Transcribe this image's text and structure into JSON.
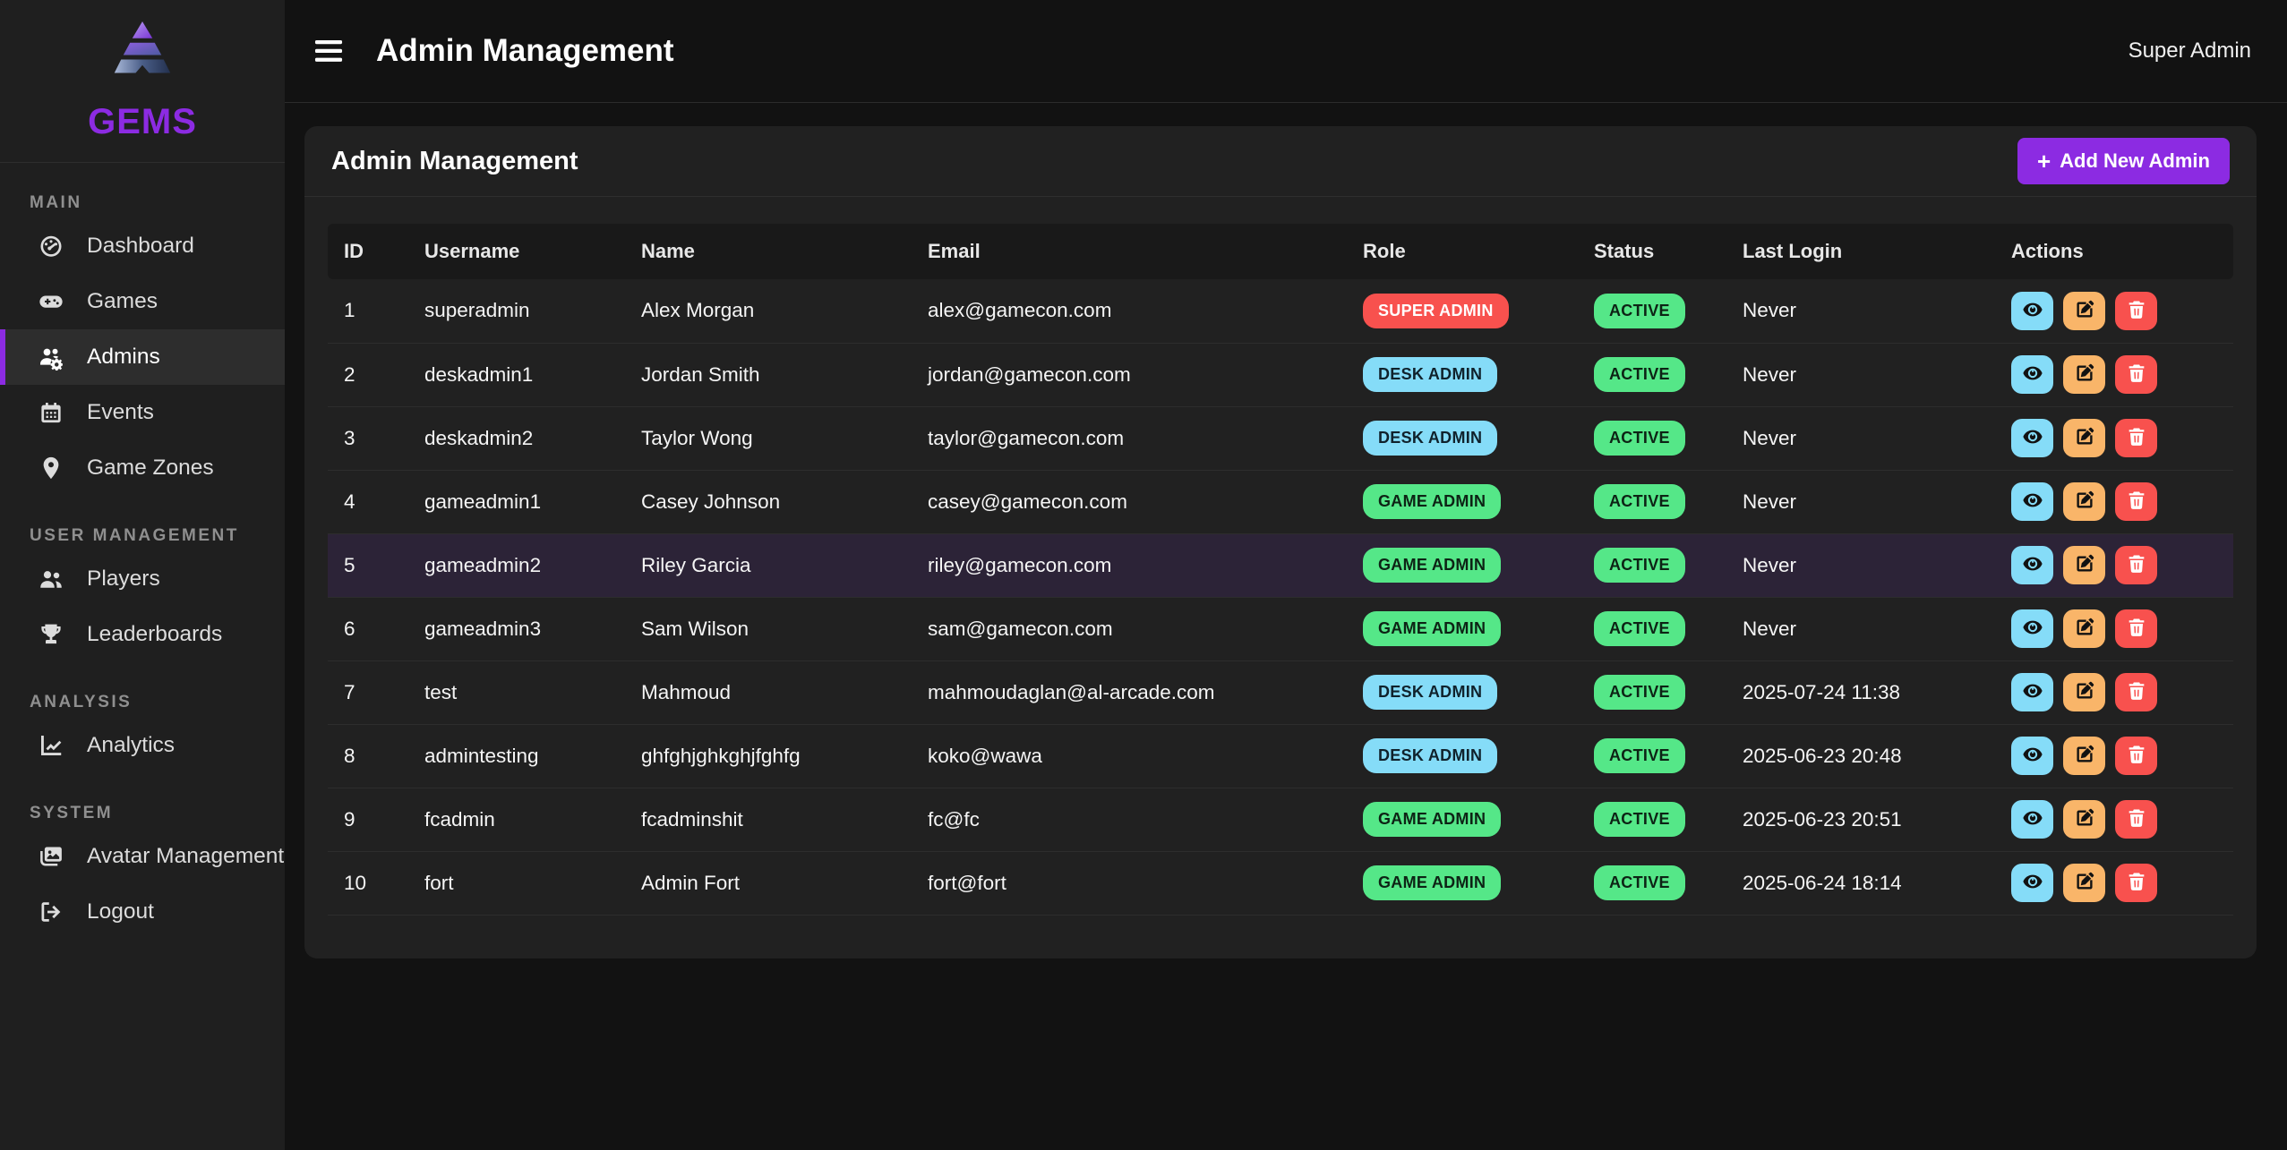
{
  "colors": {
    "accent_purple": "#8c2be2",
    "badge_red": "#f8514e",
    "badge_blue": "#85dcf8",
    "badge_green": "#55e788",
    "edit_orange": "#f9b569",
    "row_highlight": "#2c2337"
  },
  "sidebar": {
    "logo_text": "GEMS",
    "sections": [
      {
        "label": "MAIN",
        "items": [
          {
            "label": "Dashboard",
            "icon": "dashboard-icon",
            "active": false
          },
          {
            "label": "Games",
            "icon": "gamepad-icon",
            "active": false
          },
          {
            "label": "Admins",
            "icon": "admins-gear-icon",
            "active": true
          },
          {
            "label": "Events",
            "icon": "calendar-icon",
            "active": false
          },
          {
            "label": "Game Zones",
            "icon": "location-pin-icon",
            "active": false
          }
        ]
      },
      {
        "label": "USER MANAGEMENT",
        "items": [
          {
            "label": "Players",
            "icon": "users-icon",
            "active": false
          },
          {
            "label": "Leaderboards",
            "icon": "trophy-icon",
            "active": false
          }
        ]
      },
      {
        "label": "ANALYSIS",
        "items": [
          {
            "label": "Analytics",
            "icon": "chart-line-icon",
            "active": false
          }
        ]
      },
      {
        "label": "SYSTEM",
        "items": [
          {
            "label": "Avatar Management",
            "icon": "images-icon",
            "active": false
          },
          {
            "label": "Logout",
            "icon": "logout-icon",
            "active": false
          }
        ]
      }
    ]
  },
  "header": {
    "title": "Admin Management",
    "user": "Super Admin"
  },
  "card": {
    "title": "Admin Management",
    "add_button_icon": "+",
    "add_button_label": "Add New Admin"
  },
  "table": {
    "columns": [
      "ID",
      "Username",
      "Name",
      "Email",
      "Role",
      "Status",
      "Last Login",
      "Actions"
    ],
    "action_icons": [
      "eye-icon",
      "edit-icon",
      "trash-icon"
    ],
    "rows": [
      {
        "id": "1",
        "username": "superadmin",
        "name": "Alex Morgan",
        "email": "alex@gamecon.com",
        "role": "SUPER ADMIN",
        "role_variant": "super",
        "status": "ACTIVE",
        "status_variant": "active",
        "last_login": "Never",
        "highlighted": false
      },
      {
        "id": "2",
        "username": "deskadmin1",
        "name": "Jordan Smith",
        "email": "jordan@gamecon.com",
        "role": "DESK ADMIN",
        "role_variant": "desk",
        "status": "ACTIVE",
        "status_variant": "active",
        "last_login": "Never",
        "highlighted": false
      },
      {
        "id": "3",
        "username": "deskadmin2",
        "name": "Taylor Wong",
        "email": "taylor@gamecon.com",
        "role": "DESK ADMIN",
        "role_variant": "desk",
        "status": "ACTIVE",
        "status_variant": "active",
        "last_login": "Never",
        "highlighted": false
      },
      {
        "id": "4",
        "username": "gameadmin1",
        "name": "Casey Johnson",
        "email": "casey@gamecon.com",
        "role": "GAME ADMIN",
        "role_variant": "game",
        "status": "ACTIVE",
        "status_variant": "active",
        "last_login": "Never",
        "highlighted": false
      },
      {
        "id": "5",
        "username": "gameadmin2",
        "name": "Riley Garcia",
        "email": "riley@gamecon.com",
        "role": "GAME ADMIN",
        "role_variant": "game",
        "status": "ACTIVE",
        "status_variant": "active",
        "last_login": "Never",
        "highlighted": true
      },
      {
        "id": "6",
        "username": "gameadmin3",
        "name": "Sam Wilson",
        "email": "sam@gamecon.com",
        "role": "GAME ADMIN",
        "role_variant": "game",
        "status": "ACTIVE",
        "status_variant": "active",
        "last_login": "Never",
        "highlighted": false
      },
      {
        "id": "7",
        "username": "test",
        "name": "Mahmoud",
        "email": "mahmoudaglan@al-arcade.com",
        "role": "DESK ADMIN",
        "role_variant": "desk",
        "status": "ACTIVE",
        "status_variant": "active",
        "last_login": "2025-07-24 11:38",
        "highlighted": false
      },
      {
        "id": "8",
        "username": "admintesting",
        "name": "ghfghjghkghjfghfg",
        "email": "koko@wawa",
        "role": "DESK ADMIN",
        "role_variant": "desk",
        "status": "ACTIVE",
        "status_variant": "active",
        "last_login": "2025-06-23 20:48",
        "highlighted": false
      },
      {
        "id": "9",
        "username": "fcadmin",
        "name": "fcadminshit",
        "email": "fc@fc",
        "role": "GAME ADMIN",
        "role_variant": "game",
        "status": "ACTIVE",
        "status_variant": "active",
        "last_login": "2025-06-23 20:51",
        "highlighted": false
      },
      {
        "id": "10",
        "username": "fort",
        "name": "Admin Fort",
        "email": "fort@fort",
        "role": "GAME ADMIN",
        "role_variant": "game",
        "status": "ACTIVE",
        "status_variant": "active",
        "last_login": "2025-06-24 18:14",
        "highlighted": false
      }
    ]
  }
}
